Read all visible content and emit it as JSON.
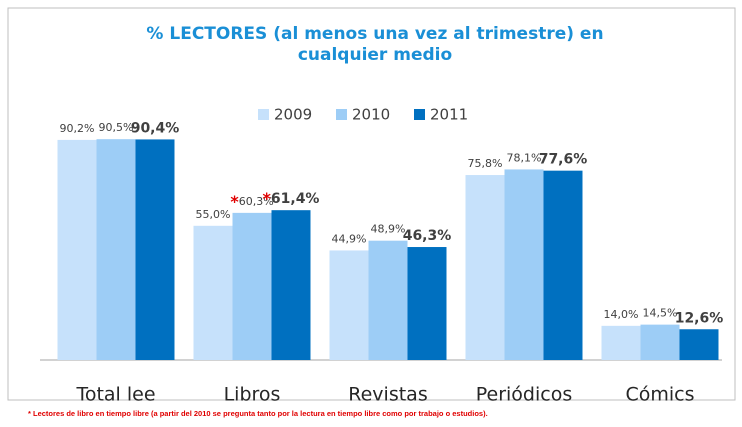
{
  "chart_data": {
    "type": "bar",
    "title": "% LECTORES (al menos una vez al trimestre) en cualquier medio",
    "categories": [
      "Total lee",
      "Libros",
      "Revistas",
      "Periódicos",
      "Cómics"
    ],
    "series": [
      {
        "name": "2009",
        "color": "#c6e1fb",
        "values": [
          90.2,
          55.0,
          44.9,
          75.8,
          14.0
        ],
        "value_labels": [
          "90,2%",
          "55,0%",
          "44,9%",
          "75,8%",
          "14,0%"
        ]
      },
      {
        "name": "2010",
        "color": "#9dcdf6",
        "values": [
          90.5,
          60.3,
          48.9,
          78.1,
          14.5
        ],
        "value_labels": [
          "90,5%",
          "*60,3%",
          "48,9%",
          "78,1%",
          "14,5%"
        ]
      },
      {
        "name": "2011",
        "color": "#0070c0",
        "values": [
          90.4,
          61.4,
          46.3,
          77.6,
          12.6
        ],
        "value_labels": [
          "90,4%",
          "*61,4%",
          "46,3%",
          "77,6%",
          "12,6%"
        ]
      }
    ],
    "ylim": [
      0,
      100
    ],
    "footnote": "* Lectores de libro en tiempo  libre (a partir del 2010 se pregunta tanto por la lectura en tiempo libre como por trabajo o estudios)."
  }
}
